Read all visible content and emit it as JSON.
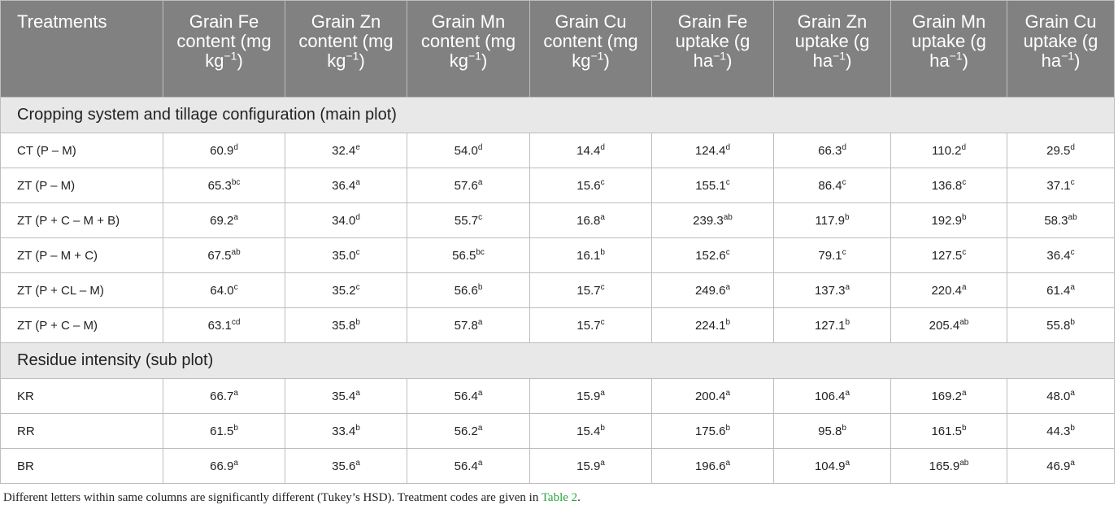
{
  "header": [
    {
      "text": "Treatments"
    },
    {
      "text": "Grain Fe content (mg kg",
      "sup": "−1",
      "tail": ")"
    },
    {
      "text": "Grain Zn content (mg kg",
      "sup": "−1",
      "tail": ")"
    },
    {
      "text": "Grain Mn content (mg kg",
      "sup": "−1",
      "tail": ")"
    },
    {
      "text": "Grain Cu content (mg kg",
      "sup": "−1",
      "tail": ")"
    },
    {
      "text": "Grain Fe uptake (g ha",
      "sup": "−1",
      "tail": ")"
    },
    {
      "text": "Grain Zn uptake (g ha",
      "sup": "−1",
      "tail": ")"
    },
    {
      "text": "Grain Mn uptake (g ha",
      "sup": "−1",
      "tail": ")"
    },
    {
      "text": "Grain Cu uptake (g ha",
      "sup": "−1",
      "tail": ")"
    }
  ],
  "sections": [
    {
      "title": "Cropping system and tillage configuration (main plot)",
      "rows": [
        {
          "label": "CT (P – M)",
          "cells": [
            {
              "v": "60.9",
              "s": "d"
            },
            {
              "v": "32.4",
              "s": "e"
            },
            {
              "v": "54.0",
              "s": "d"
            },
            {
              "v": "14.4",
              "s": "d"
            },
            {
              "v": "124.4",
              "s": "d"
            },
            {
              "v": "66.3",
              "s": "d"
            },
            {
              "v": "110.2",
              "s": "d"
            },
            {
              "v": "29.5",
              "s": "d"
            }
          ]
        },
        {
          "label": "ZT (P – M)",
          "cells": [
            {
              "v": "65.3",
              "s": "bc"
            },
            {
              "v": "36.4",
              "s": "a"
            },
            {
              "v": "57.6",
              "s": "a"
            },
            {
              "v": "15.6",
              "s": "c"
            },
            {
              "v": "155.1",
              "s": "c"
            },
            {
              "v": "86.4",
              "s": "c"
            },
            {
              "v": "136.8",
              "s": "c"
            },
            {
              "v": "37.1",
              "s": "c"
            }
          ]
        },
        {
          "label": "ZT (P + C – M + B)",
          "cells": [
            {
              "v": "69.2",
              "s": "a"
            },
            {
              "v": "34.0",
              "s": "d"
            },
            {
              "v": "55.7",
              "s": "c"
            },
            {
              "v": "16.8",
              "s": "a"
            },
            {
              "v": "239.3",
              "s": "ab"
            },
            {
              "v": "117.9",
              "s": "b"
            },
            {
              "v": "192.9",
              "s": "b"
            },
            {
              "v": "58.3",
              "s": "ab"
            }
          ]
        },
        {
          "label": "ZT (P – M + C)",
          "cells": [
            {
              "v": "67.5",
              "s": "ab"
            },
            {
              "v": "35.0",
              "s": "c"
            },
            {
              "v": "56.5",
              "s": "bc"
            },
            {
              "v": "16.1",
              "s": "b"
            },
            {
              "v": "152.6",
              "s": "c"
            },
            {
              "v": "79.1",
              "s": "c"
            },
            {
              "v": "127.5",
              "s": "c"
            },
            {
              "v": "36.4",
              "s": "c"
            }
          ]
        },
        {
          "label": "ZT (P + CL – M)",
          "cells": [
            {
              "v": "64.0",
              "s": "c"
            },
            {
              "v": "35.2",
              "s": "c"
            },
            {
              "v": "56.6",
              "s": "b"
            },
            {
              "v": "15.7",
              "s": "c"
            },
            {
              "v": "249.6",
              "s": "a"
            },
            {
              "v": "137.3",
              "s": "a"
            },
            {
              "v": "220.4",
              "s": "a"
            },
            {
              "v": "61.4",
              "s": "a"
            }
          ]
        },
        {
          "label": "ZT (P + C – M)",
          "cells": [
            {
              "v": "63.1",
              "s": "cd"
            },
            {
              "v": "35.8",
              "s": "b"
            },
            {
              "v": "57.8",
              "s": "a"
            },
            {
              "v": "15.7",
              "s": "c"
            },
            {
              "v": "224.1",
              "s": "b"
            },
            {
              "v": "127.1",
              "s": "b"
            },
            {
              "v": "205.4",
              "s": "ab"
            },
            {
              "v": "55.8",
              "s": "b"
            }
          ]
        }
      ]
    },
    {
      "title": "Residue intensity (sub plot)",
      "rows": [
        {
          "label": "KR",
          "cells": [
            {
              "v": "66.7",
              "s": "a"
            },
            {
              "v": "35.4",
              "s": "a"
            },
            {
              "v": "56.4",
              "s": "a"
            },
            {
              "v": "15.9",
              "s": "a"
            },
            {
              "v": "200.4",
              "s": "a"
            },
            {
              "v": "106.4",
              "s": "a"
            },
            {
              "v": "169.2",
              "s": "a"
            },
            {
              "v": "48.0",
              "s": "a"
            }
          ]
        },
        {
          "label": "RR",
          "cells": [
            {
              "v": "61.5",
              "s": "b"
            },
            {
              "v": "33.4",
              "s": "b"
            },
            {
              "v": "56.2",
              "s": "a"
            },
            {
              "v": "15.4",
              "s": "b"
            },
            {
              "v": "175.6",
              "s": "b"
            },
            {
              "v": "95.8",
              "s": "b"
            },
            {
              "v": "161.5",
              "s": "b"
            },
            {
              "v": "44.3",
              "s": "b"
            }
          ]
        },
        {
          "label": "BR",
          "cells": [
            {
              "v": "66.9",
              "s": "a"
            },
            {
              "v": "35.6",
              "s": "a"
            },
            {
              "v": "56.4",
              "s": "a"
            },
            {
              "v": "15.9",
              "s": "a"
            },
            {
              "v": "196.6",
              "s": "a"
            },
            {
              "v": "104.9",
              "s": "a"
            },
            {
              "v": "165.9",
              "s": "ab"
            },
            {
              "v": "46.9",
              "s": "a"
            }
          ]
        }
      ]
    }
  ],
  "footnote": {
    "text": "Different letters within same columns are significantly different (Tukey’s HSD). Treatment codes are given in ",
    "link": "Table 2",
    "end": "."
  }
}
